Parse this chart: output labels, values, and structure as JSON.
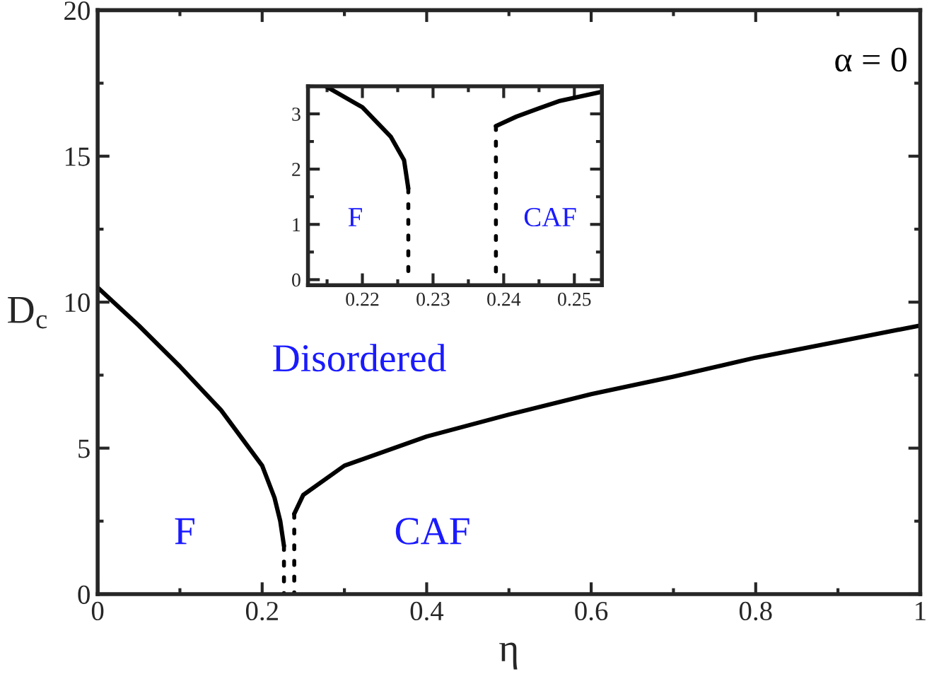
{
  "chart_data": [
    {
      "type": "line",
      "xlabel": "η",
      "ylabel": "D$_{c}$",
      "xlim": [
        0,
        1
      ],
      "ylim": [
        0,
        20
      ],
      "xticks": [
        0,
        0.2,
        0.4,
        0.6,
        0.8,
        1
      ],
      "yticks": [
        0,
        5,
        10,
        15,
        20
      ],
      "grid": false,
      "legend": false,
      "series": [
        {
          "color": "#000000",
          "line_style": "solid",
          "x": [
            0,
            0.05,
            0.1,
            0.15,
            0.2,
            0.215,
            0.222,
            0.2265
          ],
          "values": [
            10.5,
            9.2,
            7.8,
            6.3,
            4.4,
            3.3,
            2.5,
            1.65
          ]
        },
        {
          "color": "#000000",
          "line_style": "dotted",
          "x": [
            0.2265,
            0.2265
          ],
          "values": [
            1.65,
            0
          ]
        },
        {
          "color": "#000000",
          "line_style": "solid",
          "x": [
            0.239,
            0.25,
            0.3,
            0.4,
            0.5,
            0.6,
            0.7,
            0.8,
            0.9,
            1.0
          ],
          "values": [
            2.75,
            3.4,
            4.4,
            5.4,
            6.15,
            6.85,
            7.45,
            8.1,
            8.65,
            9.2
          ]
        },
        {
          "color": "#000000",
          "line_style": "dotted",
          "x": [
            0.239,
            0.239
          ],
          "values": [
            2.75,
            0
          ]
        }
      ],
      "annotations": [
        "Disordered",
        "F",
        "CAF",
        "α = 0"
      ]
    },
    {
      "type": "line",
      "xlim": [
        0.2123,
        0.2539
      ],
      "ylim": [
        -0.1,
        3.5
      ],
      "xticks": [
        0.22,
        0.23,
        0.24,
        0.25
      ],
      "yticks": [
        0,
        1,
        2,
        3
      ],
      "grid": false,
      "legend": false,
      "series": [
        {
          "color": "#000000",
          "line_style": "solid",
          "x": [
            0.2148,
            0.22,
            0.224,
            0.2259,
            0.2265
          ],
          "values": [
            3.5,
            3.12,
            2.59,
            2.16,
            1.65
          ]
        },
        {
          "color": "#000000",
          "line_style": "dotted",
          "x": [
            0.2265,
            0.2265
          ],
          "values": [
            1.65,
            0
          ]
        },
        {
          "color": "#000000",
          "line_style": "solid",
          "x": [
            0.2389,
            0.2418,
            0.2478,
            0.2539
          ],
          "values": [
            2.78,
            2.95,
            3.23,
            3.4
          ]
        },
        {
          "color": "#000000",
          "line_style": "dotted",
          "x": [
            0.2389,
            0.2389
          ],
          "values": [
            2.78,
            0
          ]
        }
      ],
      "annotations": [
        "F",
        "CAF"
      ]
    }
  ]
}
